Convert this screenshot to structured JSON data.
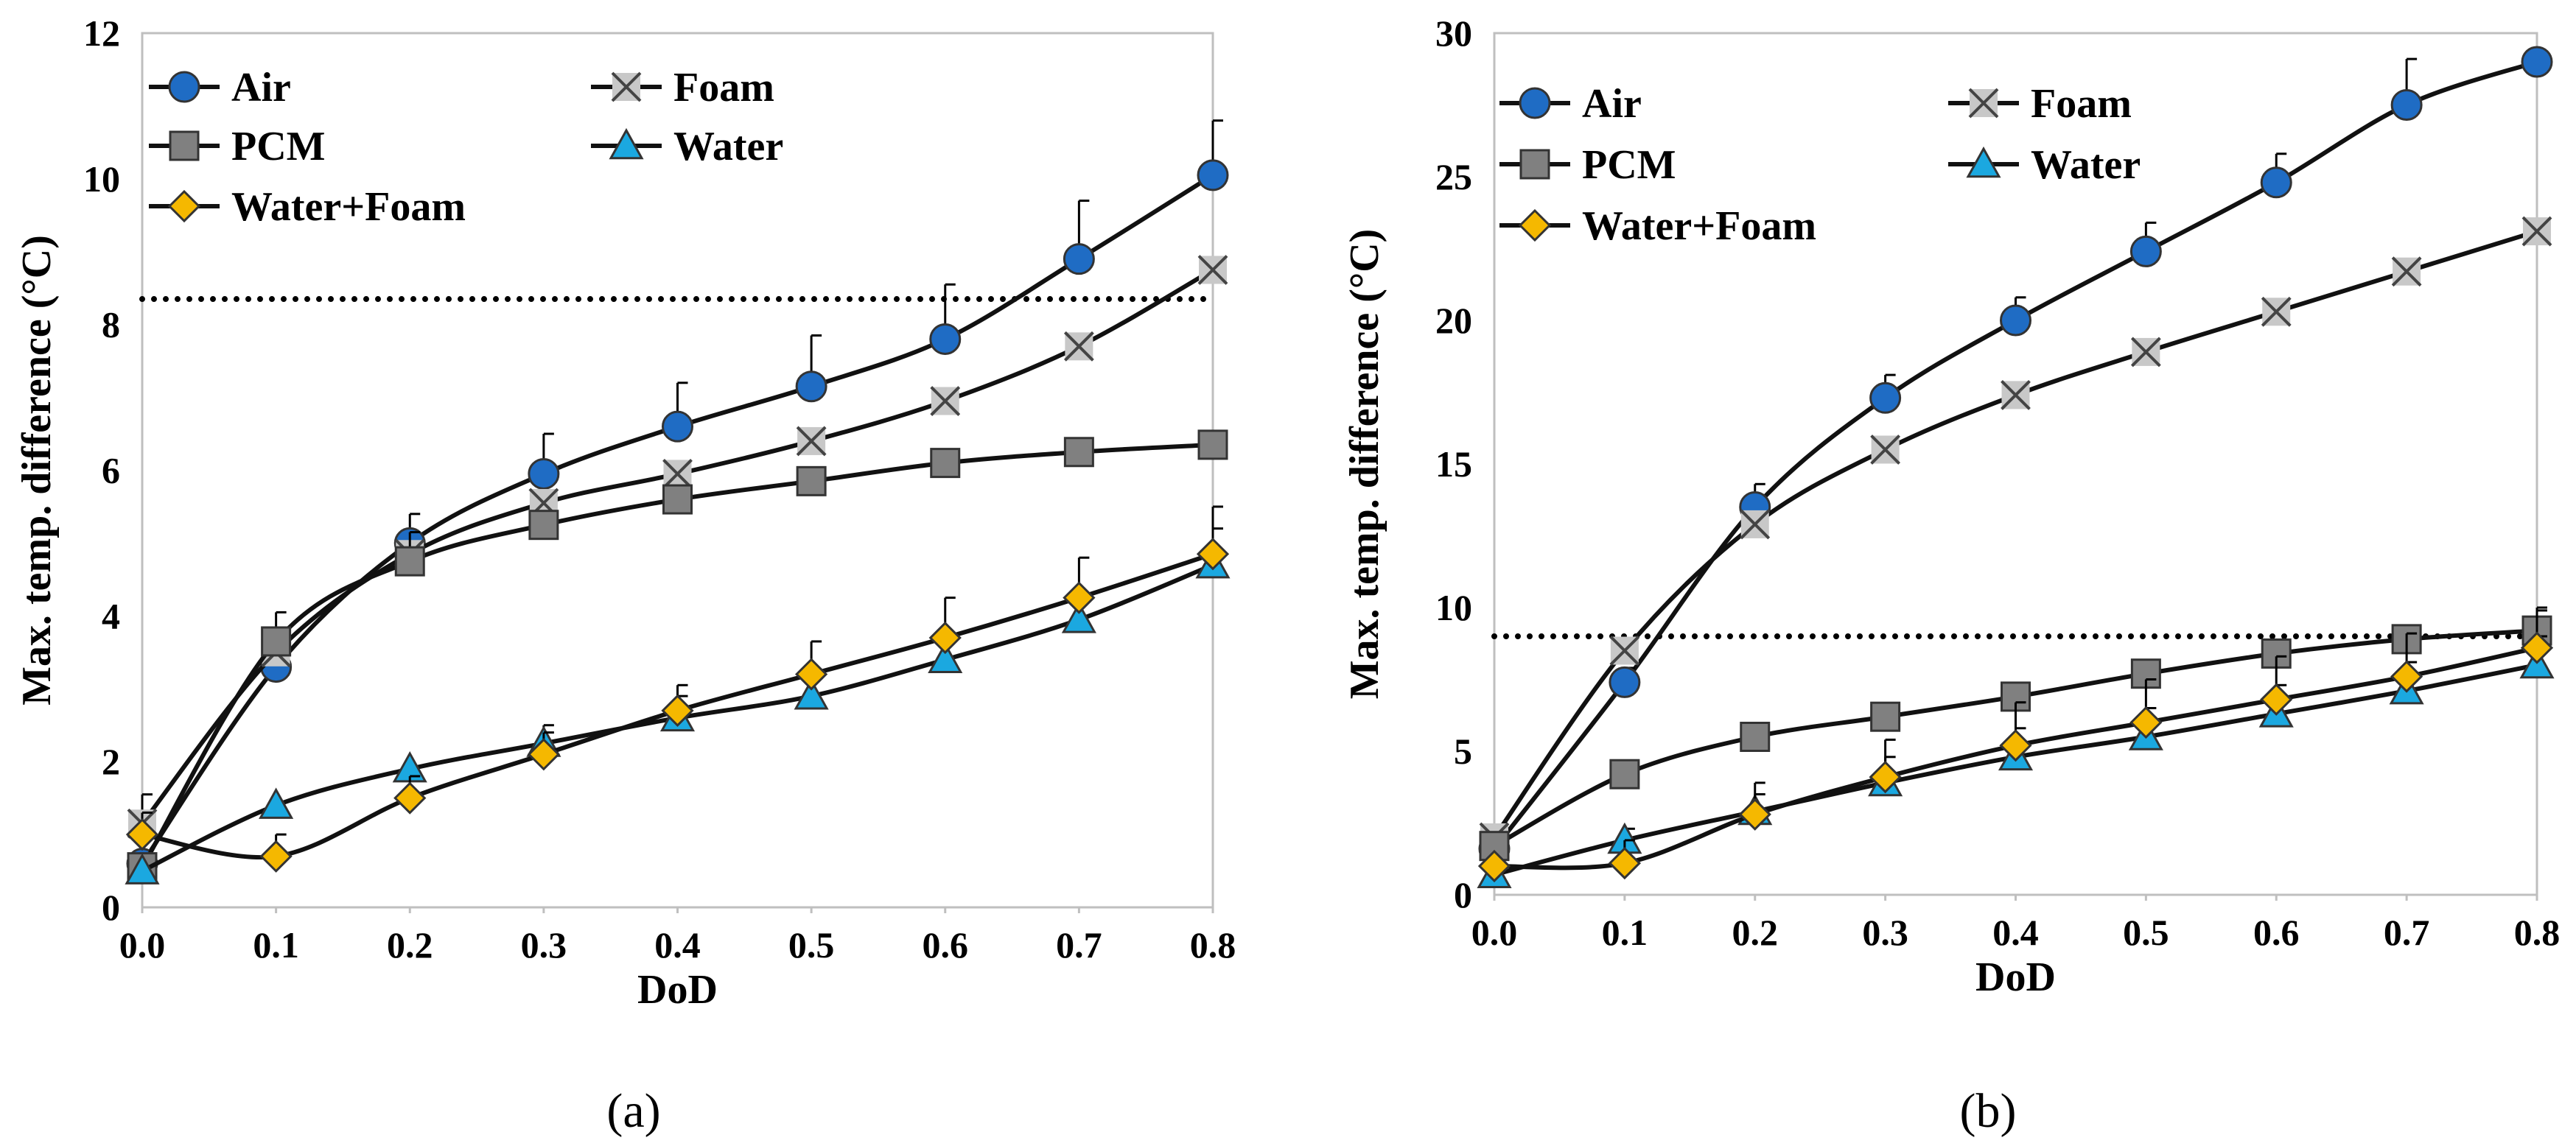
{
  "chart_data": [
    {
      "type": "line",
      "panel_label": "(a)",
      "xlabel": "DoD",
      "ylabel": "Max. temp. difference (°C)",
      "xlim": [
        0.0,
        0.8
      ],
      "ylim": [
        0,
        12
      ],
      "x_ticks": [
        "0.0",
        "0.1",
        "0.2",
        "0.3",
        "0.4",
        "0.5",
        "0.6",
        "0.7",
        "0.8"
      ],
      "y_ticks": [
        "0",
        "2",
        "4",
        "6",
        "8",
        "10",
        "12"
      ],
      "reference_line": 8.35,
      "x": [
        0.0,
        0.1,
        0.2,
        0.3,
        0.4,
        0.5,
        0.6,
        0.7,
        0.8
      ],
      "series": [
        {
          "name": "Air",
          "marker": "circle",
          "fill": "#1F6CC4",
          "values": [
            0.6,
            3.3,
            5.0,
            5.95,
            6.6,
            7.15,
            7.8,
            8.9,
            10.05
          ],
          "errors": [
            0,
            0.35,
            0.4,
            0.55,
            0.6,
            0.7,
            0.75,
            0.8,
            0.75
          ]
        },
        {
          "name": "Foam",
          "marker": "x",
          "fill": "#C8C8C8",
          "values": [
            1.15,
            3.5,
            4.85,
            5.55,
            5.95,
            6.4,
            6.95,
            7.7,
            8.75
          ],
          "errors": [
            0.4,
            0,
            0,
            0,
            0,
            0,
            0,
            0,
            0
          ]
        },
        {
          "name": "PCM",
          "marker": "square",
          "fill": "#808080",
          "values": [
            0.55,
            3.65,
            4.75,
            5.25,
            5.6,
            5.85,
            6.1,
            6.25,
            6.35
          ],
          "errors": [
            0,
            0.4,
            0.4,
            0,
            0,
            0,
            0,
            0,
            0
          ]
        },
        {
          "name": "Water",
          "marker": "triangle",
          "fill": "#1BA8E0",
          "values": [
            0.5,
            1.4,
            1.9,
            2.25,
            2.6,
            2.9,
            3.4,
            3.95,
            4.7
          ],
          "errors": [
            0,
            0,
            0,
            0.25,
            0.3,
            0,
            0,
            0.3,
            0.5
          ]
        },
        {
          "name": "Water+Foam",
          "marker": "diamond",
          "fill": "#F5B800",
          "values": [
            1.0,
            0.7,
            1.5,
            2.1,
            2.7,
            3.2,
            3.7,
            4.25,
            4.85
          ],
          "errors": [
            0.3,
            0.3,
            0.3,
            0.3,
            0.35,
            0.45,
            0.55,
            0.55,
            0.65
          ]
        }
      ]
    },
    {
      "type": "line",
      "panel_label": "(b)",
      "xlabel": "DoD",
      "ylabel": "Max. temp. difference (°C)",
      "xlim": [
        0.0,
        0.8
      ],
      "ylim": [
        0,
        30
      ],
      "x_ticks": [
        "0.0",
        "0.1",
        "0.2",
        "0.3",
        "0.4",
        "0.5",
        "0.6",
        "0.7",
        "0.8"
      ],
      "y_ticks": [
        "0",
        "5",
        "10",
        "15",
        "20",
        "25",
        "30"
      ],
      "reference_line": 9.0,
      "x": [
        0.0,
        0.1,
        0.2,
        0.3,
        0.4,
        0.5,
        0.6,
        0.7,
        0.8
      ],
      "series": [
        {
          "name": "Air",
          "marker": "circle",
          "fill": "#1F6CC4",
          "values": [
            1.6,
            7.4,
            13.5,
            17.3,
            20.0,
            22.4,
            24.8,
            27.5,
            29.0
          ],
          "errors": [
            0,
            0.5,
            0.8,
            0.8,
            0.8,
            1.0,
            1.0,
            1.6,
            0
          ]
        },
        {
          "name": "Foam",
          "marker": "x",
          "fill": "#C8C8C8",
          "values": [
            2.0,
            8.5,
            12.9,
            15.5,
            17.4,
            18.9,
            20.3,
            21.7,
            23.1
          ],
          "errors": [
            0,
            0,
            0,
            0,
            0,
            0,
            0,
            0,
            0
          ]
        },
        {
          "name": "PCM",
          "marker": "square",
          "fill": "#808080",
          "values": [
            1.7,
            4.2,
            5.5,
            6.2,
            6.9,
            7.7,
            8.4,
            8.9,
            9.2
          ],
          "errors": [
            0,
            0,
            0,
            0,
            0,
            0,
            0,
            0,
            0.8
          ]
        },
        {
          "name": "Water",
          "marker": "triangle",
          "fill": "#1BA8E0",
          "values": [
            0.7,
            1.9,
            2.9,
            3.9,
            4.8,
            5.5,
            6.3,
            7.1,
            8.0
          ],
          "errors": [
            0,
            0.4,
            0.6,
            0.9,
            1.0,
            1.0,
            1.0,
            1.0,
            1.0
          ]
        },
        {
          "name": "Water+Foam",
          "marker": "diamond",
          "fill": "#F5B800",
          "values": [
            1.0,
            1.1,
            2.8,
            4.1,
            5.2,
            6.0,
            6.8,
            7.6,
            8.6
          ],
          "errors": [
            0,
            0.8,
            1.1,
            1.3,
            1.5,
            1.5,
            1.5,
            1.5,
            1.3
          ]
        }
      ]
    }
  ]
}
